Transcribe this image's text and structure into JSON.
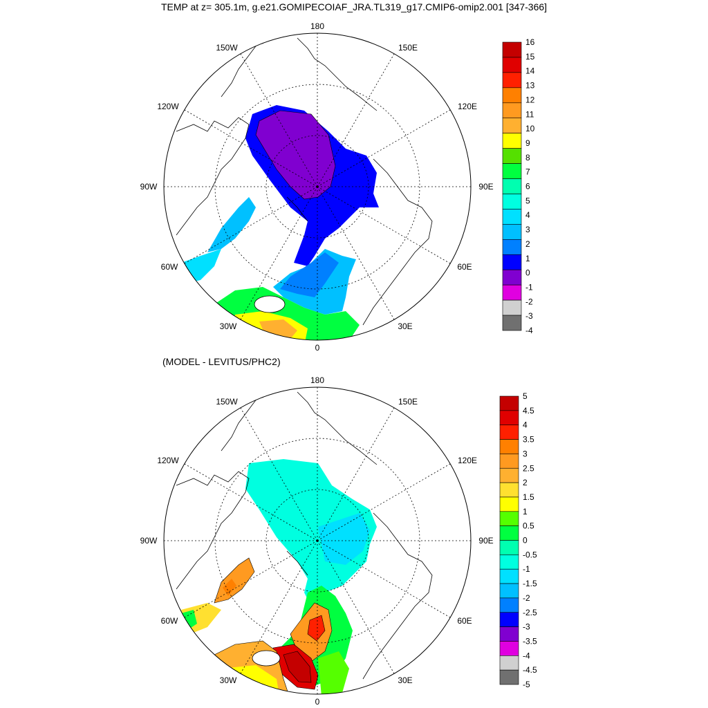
{
  "title": "TEMP at z= 305.1m, g.e21.GOMIPECOIAF_JRA.TL319_g17.CMIP6-omip2.001 [347-366]",
  "subtitle": "(MODEL - LEVITUS/PHC2)",
  "map_labels": {
    "lon180": "180",
    "lon0": "0",
    "w150": "150W",
    "e150": "150E",
    "w120": "120W",
    "e120": "120E",
    "w90": "90W",
    "e90": "90E",
    "w60": "60W",
    "e60": "60E",
    "w30": "30W",
    "e30": "30E"
  },
  "colorbar_top": {
    "labels": [
      "16",
      "15",
      "14",
      "13",
      "12",
      "11",
      "10",
      "9",
      "8",
      "7",
      "6",
      "5",
      "4",
      "3",
      "2",
      "1",
      "0",
      "-1",
      "-2",
      "-3",
      "-4"
    ],
    "colors": [
      "#c40000",
      "#e00000",
      "#ff2000",
      "#ff8000",
      "#ff9a20",
      "#ffb030",
      "#ffff00",
      "#55e000",
      "#00ff40",
      "#00ffb0",
      "#00ffe0",
      "#00e0ff",
      "#00c0ff",
      "#0080ff",
      "#0000ff",
      "#8000d0",
      "#e000e0",
      "#d0d0d0",
      "#707070"
    ]
  },
  "colorbar_bottom": {
    "labels": [
      "5",
      "4.5",
      "4",
      "3.5",
      "3",
      "2.5",
      "2",
      "1.5",
      "1",
      "0.5",
      "0",
      "-0.5",
      "-1",
      "-1.5",
      "-2",
      "-2.5",
      "-3",
      "-3.5",
      "-4",
      "-4.5",
      "-5"
    ],
    "colors": [
      "#c40000",
      "#e00000",
      "#ff2000",
      "#ff8000",
      "#ff9a20",
      "#ffb030",
      "#ffe030",
      "#ffff00",
      "#55ff00",
      "#00ff40",
      "#00ffb0",
      "#00ffe0",
      "#00e0ff",
      "#00c0ff",
      "#0080ff",
      "#0000ff",
      "#8000d0",
      "#e000e0",
      "#d0d0d0",
      "#707070"
    ]
  }
}
